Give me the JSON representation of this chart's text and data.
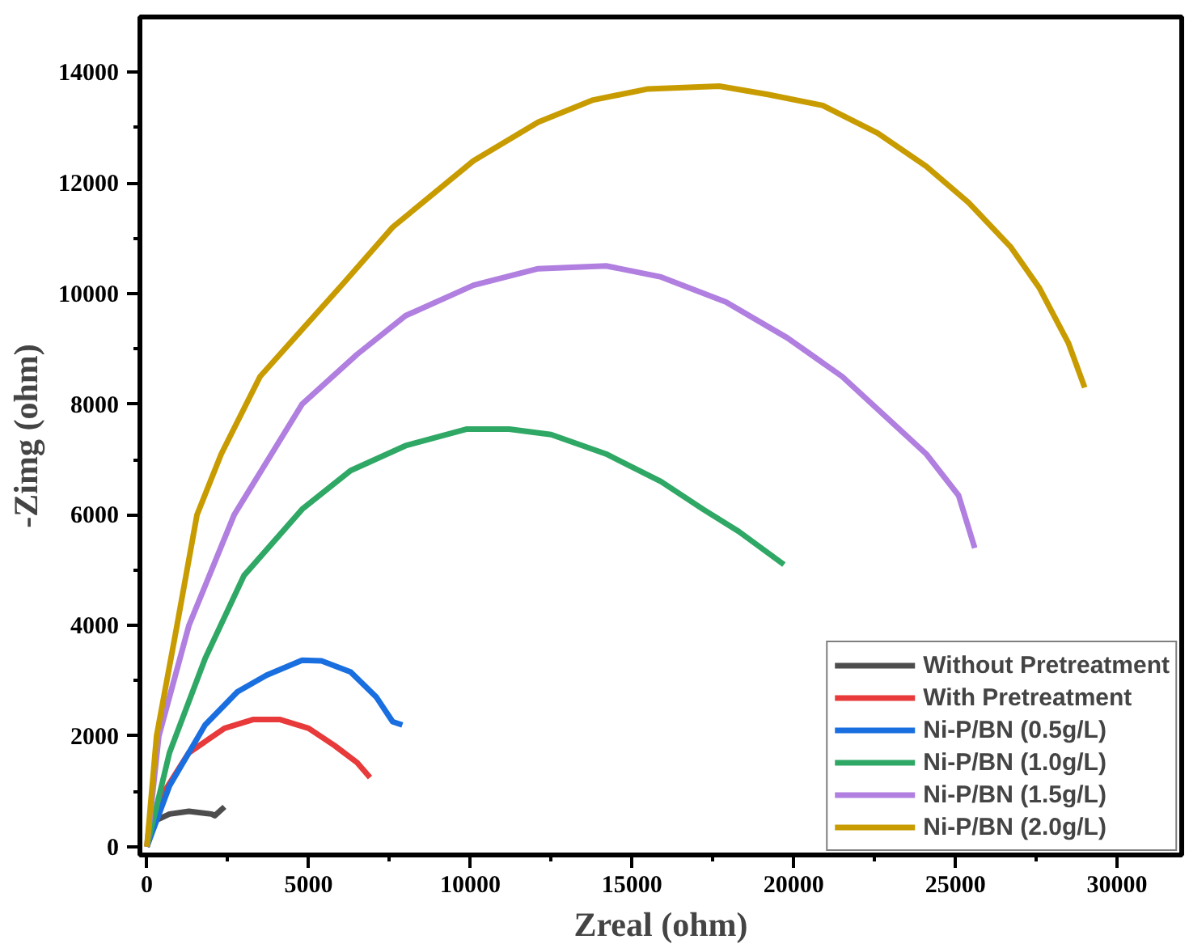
{
  "chart_data": {
    "type": "line",
    "xlabel": "Zreal (ohm)",
    "ylabel": "-Zimg (ohm)",
    "xlim": [
      -215,
      32000
    ],
    "ylim": [
      -150,
      15000
    ],
    "xticks": [
      0,
      5000,
      10000,
      15000,
      20000,
      25000,
      30000
    ],
    "yticks": [
      0,
      2000,
      4000,
      6000,
      8000,
      10000,
      12000,
      14000
    ],
    "grid": false,
    "legend": "bottom right",
    "marker": "none",
    "line_style": "solid",
    "series": [
      {
        "name": "Without Pretreatment",
        "color": "#4d4d4d",
        "x": [
          0,
          260,
          700,
          1300,
          2000,
          2100,
          2400
        ],
        "values": [
          0,
          470,
          590,
          640,
          590,
          560,
          720
        ]
      },
      {
        "name": "With Pretreatment",
        "color": "#e83a3a",
        "x": [
          0,
          500,
          1300,
          2400,
          3300,
          4100,
          5000,
          5800,
          6500,
          6900
        ],
        "values": [
          0,
          960,
          1700,
          2140,
          2300,
          2300,
          2140,
          1830,
          1520,
          1250
        ]
      },
      {
        "name": "Ni-P/BN (0.5g/L)",
        "color": "#1a6fe0",
        "x": [
          0,
          700,
          1800,
          2800,
          3700,
          4800,
          5400,
          6300,
          7100,
          7600,
          7900
        ],
        "values": [
          0,
          1100,
          2200,
          2800,
          3100,
          3370,
          3360,
          3160,
          2700,
          2260,
          2200
        ]
      },
      {
        "name": "Ni-P/BN (1.0g/L)",
        "color": "#2fa865",
        "x": [
          0,
          700,
          1800,
          3000,
          4800,
          6300,
          8000,
          9900,
          11200,
          12500,
          14200,
          15900,
          17200,
          18300,
          19700
        ],
        "values": [
          0,
          1700,
          3400,
          4900,
          6100,
          6800,
          7250,
          7550,
          7550,
          7450,
          7100,
          6600,
          6100,
          5700,
          5100
        ]
      },
      {
        "name": "Ni-P/BN (1.5g/L)",
        "color": "#b07fe0",
        "x": [
          0,
          370,
          1300,
          2700,
          4800,
          6500,
          8000,
          10100,
          12100,
          14200,
          15900,
          17900,
          19800,
          21500,
          22800,
          24100,
          25100,
          25600
        ],
        "values": [
          0,
          2000,
          4000,
          6000,
          8000,
          8900,
          9600,
          10150,
          10450,
          10500,
          10300,
          9850,
          9200,
          8500,
          7800,
          7100,
          6350,
          5400
        ]
      },
      {
        "name": "Ni-P/BN (2.0g/L)",
        "color": "#c89c00",
        "x": [
          0,
          300,
          900,
          1550,
          2300,
          3500,
          4800,
          6100,
          7600,
          10100,
          12100,
          13800,
          15500,
          17700,
          19200,
          20900,
          22600,
          24100,
          25400,
          26700,
          27600,
          28500,
          29000
        ],
        "values": [
          0,
          2000,
          3900,
          6000,
          7100,
          8500,
          9350,
          10200,
          11200,
          12400,
          13100,
          13500,
          13700,
          13750,
          13600,
          13400,
          12900,
          12300,
          11650,
          10850,
          10100,
          9100,
          8300
        ]
      }
    ]
  }
}
